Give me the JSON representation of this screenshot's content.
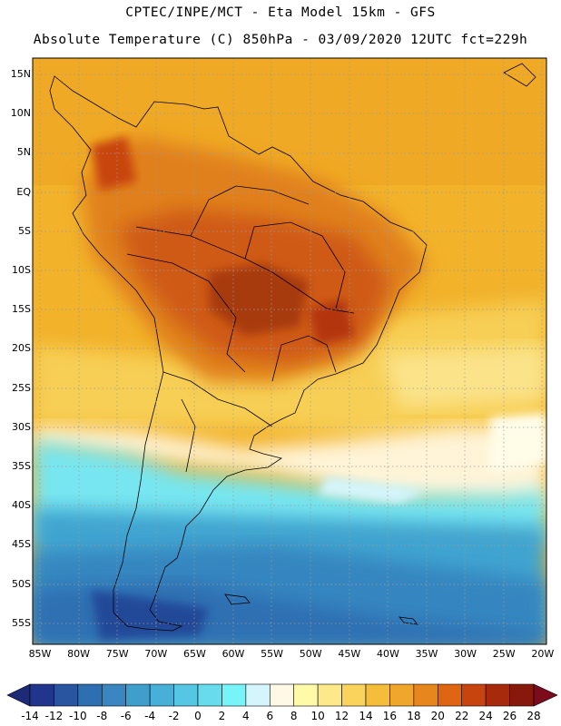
{
  "title": "CPTEC/INPE/MCT  -  Eta Model 15km  -  GFS",
  "subtitle": "Absolute Temperature (C) 850hPa - 03/09/2020 12UTC fct=229h",
  "lat_labels": [
    "15N",
    "10N",
    "5N",
    "EQ",
    "5S",
    "10S",
    "15S",
    "20S",
    "25S",
    "30S",
    "35S",
    "40S",
    "45S",
    "50S",
    "55S"
  ],
  "lon_labels": [
    "85W",
    "80W",
    "75W",
    "70W",
    "65W",
    "60W",
    "55W",
    "50W",
    "45W",
    "40W",
    "35W",
    "30W",
    "25W",
    "20W"
  ],
  "colorbar": {
    "labels": [
      "-14",
      "-12",
      "-10",
      "-8",
      "-6",
      "-4",
      "-2",
      "0",
      "2",
      "4",
      "6",
      "8",
      "10",
      "12",
      "14",
      "16",
      "18",
      "20",
      "22",
      "24",
      "26",
      "28"
    ],
    "colors": [
      "#20358c",
      "#2854a0",
      "#2e6fb2",
      "#3a86c0",
      "#3f9ecc",
      "#48b0d8",
      "#55c6e3",
      "#66dcec",
      "#77f4f8",
      "#d4f5fc",
      "#fff8e6",
      "#fffaa8",
      "#fde98a",
      "#f9d35c",
      "#f4bd3a",
      "#f0a62a",
      "#e8861e",
      "#de6512",
      "#c8440e",
      "#a82a0c",
      "#86190c"
    ],
    "low_color": "#1c2a78",
    "high_color": "#7c0c1c"
  },
  "field_colors": {
    "ocean_north": "#f2b22a",
    "land_hot": "#cf5a16",
    "land_hottest": "#a83a10",
    "land_warm": "#e0801e",
    "subtropical": "#f7cf55",
    "cool_band": "#fff8e6",
    "southern_ocean": "#3fa4d0",
    "deep_south": "#2c5ca6",
    "coast_lines": "#000000"
  }
}
